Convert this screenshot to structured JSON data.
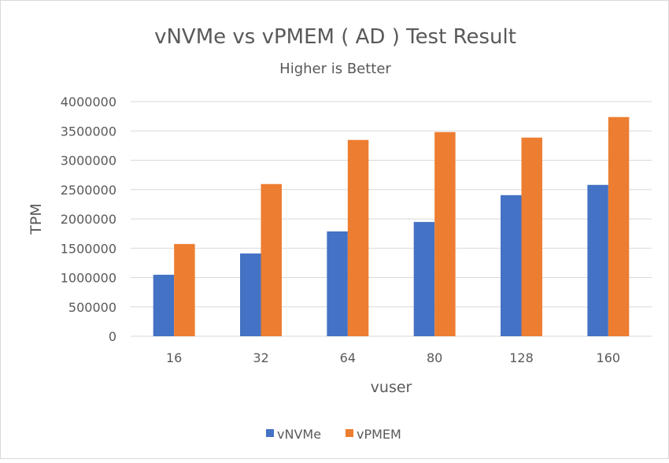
{
  "chart_data": {
    "type": "bar",
    "title": "vNVMe vs vPMEM ( AD ) Test Result",
    "subtitle": "Higher is Better",
    "xlabel": "vuser",
    "ylabel": "TPM",
    "categories": [
      "16",
      "32",
      "64",
      "80",
      "128",
      "160"
    ],
    "ylim": [
      0,
      4000000
    ],
    "yticks": [
      "0",
      "500000",
      "1000000",
      "1500000",
      "2000000",
      "2500000",
      "3000000",
      "3500000",
      "4000000"
    ],
    "grid": true,
    "legend_position": "bottom",
    "series": [
      {
        "name": "vNVMe",
        "color": "#4472C4",
        "values": [
          1048000,
          1411000,
          1787000,
          1948000,
          2405000,
          2580000
        ]
      },
      {
        "name": "vPMEM",
        "color": "#ED7D31",
        "values": [
          1572000,
          2594000,
          3346000,
          3480000,
          3386000,
          3736000
        ]
      }
    ]
  }
}
